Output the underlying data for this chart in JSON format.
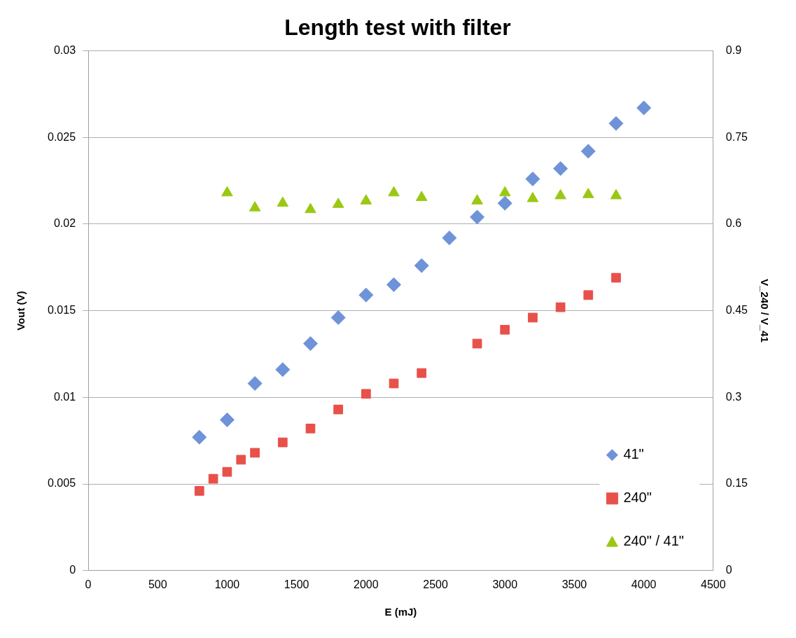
{
  "chart_data": {
    "type": "scatter",
    "title": "Length test with filter",
    "xlabel": "E (mJ)",
    "ylabel": "Vout (V)",
    "y2label": "V_240 / V_41",
    "xlim": [
      0,
      4500
    ],
    "xticks": [
      0,
      500,
      1000,
      1500,
      2000,
      2500,
      3000,
      3500,
      4000,
      4500
    ],
    "ylim": [
      0,
      0.03
    ],
    "yticks": [
      0,
      0.005,
      0.01,
      0.015,
      0.02,
      0.025,
      0.03
    ],
    "y2lim": [
      0,
      0.9
    ],
    "y2ticks": [
      0,
      0.15,
      0.3,
      0.45,
      0.6,
      0.75,
      0.9
    ],
    "grid": "y",
    "legend": "bottom right",
    "series": [
      {
        "name": "41\"",
        "color": "#6f93d8",
        "marker": "diamond",
        "x": [
          800,
          1000,
          1200,
          1400,
          1600,
          1800,
          2000,
          2200,
          2400,
          2600,
          2800,
          3000,
          3200,
          3400,
          3600,
          3800,
          4000
        ],
        "values": [
          0.0077,
          0.0087,
          0.0108,
          0.0116,
          0.0131,
          0.0146,
          0.0159,
          0.0165,
          0.0176,
          0.0192,
          0.0204,
          0.0212,
          0.0226,
          0.0232,
          0.0242,
          0.0258,
          0.0267
        ]
      },
      {
        "name": "240\"",
        "color": "#e8504a",
        "marker": "square",
        "x": [
          800,
          900,
          1000,
          1100,
          1200,
          1400,
          1600,
          1800,
          2000,
          2200,
          2400,
          2800,
          3000,
          3200,
          3400,
          3600,
          3800
        ],
        "values": [
          0.0046,
          0.0053,
          0.0057,
          0.0064,
          0.0068,
          0.0074,
          0.0082,
          0.0093,
          0.0102,
          0.0108,
          0.0114,
          0.0131,
          0.0139,
          0.0146,
          0.0152,
          0.0159,
          0.0169
        ]
      },
      {
        "name": "240\" / 41\"",
        "color": "#9bc813",
        "marker": "triangle",
        "axis": "y2",
        "x": [
          1000,
          1200,
          1400,
          1600,
          1800,
          2000,
          2200,
          2400,
          2800,
          3000,
          3200,
          3400,
          3600,
          3800
        ],
        "values": [
          0.654,
          0.628,
          0.636,
          0.625,
          0.634,
          0.64,
          0.654,
          0.646,
          0.64,
          0.654,
          0.644,
          0.649,
          0.651,
          0.649
        ]
      }
    ]
  }
}
